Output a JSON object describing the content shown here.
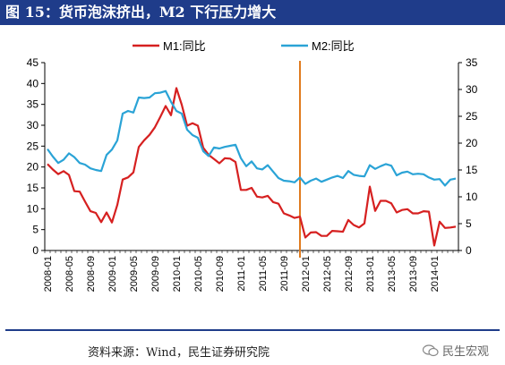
{
  "header": {
    "title": "图 15：货币泡沫挤出，M2 下行压力增大"
  },
  "footer": {
    "source": "资料来源：Wind，民生证券研究院",
    "watermark": "民生宏观"
  },
  "chart_data": {
    "type": "line",
    "title": "",
    "xlabel": "",
    "ylabel": "",
    "ylim_left": [
      0,
      45
    ],
    "ylim_right": [
      0,
      35
    ],
    "left_ticks": [
      "0",
      "5",
      "10",
      "15",
      "20",
      "25",
      "30",
      "35",
      "40",
      "45"
    ],
    "right_ticks": [
      "0",
      "5",
      "10",
      "15",
      "20",
      "25",
      "30",
      "35"
    ],
    "x_tick_labels": [
      "2008-01",
      "2008-05",
      "2008-09",
      "2009-01",
      "2009-05",
      "2009-09",
      "2010-01",
      "2010-05",
      "2010-09",
      "2011-01",
      "2011-05",
      "2011-09",
      "2012-01",
      "2012-05",
      "2012-09",
      "2013-01",
      "2013-05",
      "2013-09",
      "2014-01"
    ],
    "legend_position": "top",
    "marker_line": {
      "x": "2011-12",
      "color": "#e07b1f"
    },
    "series": [
      {
        "name": "M1:同比",
        "axis": "left",
        "color": "#d62020",
        "x": [
          "2008-01",
          "2008-02",
          "2008-03",
          "2008-04",
          "2008-05",
          "2008-06",
          "2008-07",
          "2008-08",
          "2008-09",
          "2008-10",
          "2008-11",
          "2008-12",
          "2009-01",
          "2009-02",
          "2009-03",
          "2009-04",
          "2009-05",
          "2009-06",
          "2009-07",
          "2009-08",
          "2009-09",
          "2009-10",
          "2009-11",
          "2009-12",
          "2010-01",
          "2010-02",
          "2010-03",
          "2010-04",
          "2010-05",
          "2010-06",
          "2010-07",
          "2010-08",
          "2010-09",
          "2010-10",
          "2010-11",
          "2010-12",
          "2011-01",
          "2011-02",
          "2011-03",
          "2011-04",
          "2011-05",
          "2011-06",
          "2011-07",
          "2011-08",
          "2011-09",
          "2011-10",
          "2011-11",
          "2011-12",
          "2012-01",
          "2012-02",
          "2012-03",
          "2012-04",
          "2012-05",
          "2012-06",
          "2012-07",
          "2012-08",
          "2012-09",
          "2012-10",
          "2012-11",
          "2012-12",
          "2013-01",
          "2013-02",
          "2013-03",
          "2013-04",
          "2013-05",
          "2013-06",
          "2013-07",
          "2013-08",
          "2013-09",
          "2013-10",
          "2013-11",
          "2013-12",
          "2014-01",
          "2014-02",
          "2014-03",
          "2014-04",
          "2014-05"
        ],
        "values": [
          20.7,
          19.4,
          18.3,
          19.0,
          18.1,
          14.2,
          14.1,
          11.7,
          9.4,
          9.0,
          6.8,
          9.1,
          6.7,
          10.9,
          17.0,
          17.5,
          18.7,
          24.8,
          26.4,
          27.7,
          29.5,
          32.0,
          34.6,
          32.4,
          38.9,
          34.9,
          29.9,
          30.5,
          29.9,
          24.6,
          22.9,
          21.9,
          20.9,
          22.1,
          22.0,
          21.2,
          14.5,
          14.5,
          15.0,
          12.9,
          12.7,
          13.1,
          11.6,
          11.2,
          8.9,
          8.4,
          7.8,
          8.1,
          3.1,
          4.3,
          4.4,
          3.5,
          3.5,
          4.7,
          4.6,
          4.5,
          7.3,
          6.1,
          5.5,
          6.5,
          15.3,
          9.5,
          11.9,
          11.9,
          11.3,
          9.1,
          9.7,
          9.9,
          8.9,
          8.9,
          9.4,
          9.3,
          1.2,
          6.9,
          5.4,
          5.5,
          5.7
        ]
      },
      {
        "name": "M2:同比",
        "axis": "right",
        "color": "#2aa3d6",
        "x": [
          "2008-01",
          "2008-02",
          "2008-03",
          "2008-04",
          "2008-05",
          "2008-06",
          "2008-07",
          "2008-08",
          "2008-09",
          "2008-10",
          "2008-11",
          "2008-12",
          "2009-01",
          "2009-02",
          "2009-03",
          "2009-04",
          "2009-05",
          "2009-06",
          "2009-07",
          "2009-08",
          "2009-09",
          "2009-10",
          "2009-11",
          "2009-12",
          "2010-01",
          "2010-02",
          "2010-03",
          "2010-04",
          "2010-05",
          "2010-06",
          "2010-07",
          "2010-08",
          "2010-09",
          "2010-10",
          "2010-11",
          "2010-12",
          "2011-01",
          "2011-02",
          "2011-03",
          "2011-04",
          "2011-05",
          "2011-06",
          "2011-07",
          "2011-08",
          "2011-09",
          "2011-10",
          "2011-11",
          "2011-12",
          "2012-01",
          "2012-02",
          "2012-03",
          "2012-04",
          "2012-05",
          "2012-06",
          "2012-07",
          "2012-08",
          "2012-09",
          "2012-10",
          "2012-11",
          "2012-12",
          "2013-01",
          "2013-02",
          "2013-03",
          "2013-04",
          "2013-05",
          "2013-06",
          "2013-07",
          "2013-08",
          "2013-09",
          "2013-10",
          "2013-11",
          "2013-12",
          "2014-01",
          "2014-02",
          "2014-03",
          "2014-04",
          "2014-05"
        ],
        "values": [
          18.9,
          17.5,
          16.3,
          16.9,
          18.1,
          17.4,
          16.3,
          16.0,
          15.3,
          15.0,
          14.8,
          17.8,
          18.8,
          20.5,
          25.5,
          26.0,
          25.7,
          28.5,
          28.4,
          28.5,
          29.3,
          29.4,
          29.7,
          27.7,
          26.0,
          25.5,
          22.5,
          21.5,
          21.0,
          18.5,
          17.6,
          19.2,
          19.0,
          19.3,
          19.5,
          19.7,
          17.2,
          15.7,
          16.6,
          15.3,
          15.1,
          15.9,
          14.7,
          13.5,
          13.0,
          12.9,
          12.7,
          13.6,
          12.4,
          13.0,
          13.4,
          12.8,
          13.2,
          13.6,
          13.9,
          13.5,
          14.8,
          14.1,
          13.9,
          13.8,
          15.9,
          15.2,
          15.7,
          16.1,
          15.8,
          14.0,
          14.5,
          14.7,
          14.2,
          14.3,
          14.2,
          13.6,
          13.2,
          13.3,
          12.1,
          13.2,
          13.4
        ]
      }
    ]
  }
}
